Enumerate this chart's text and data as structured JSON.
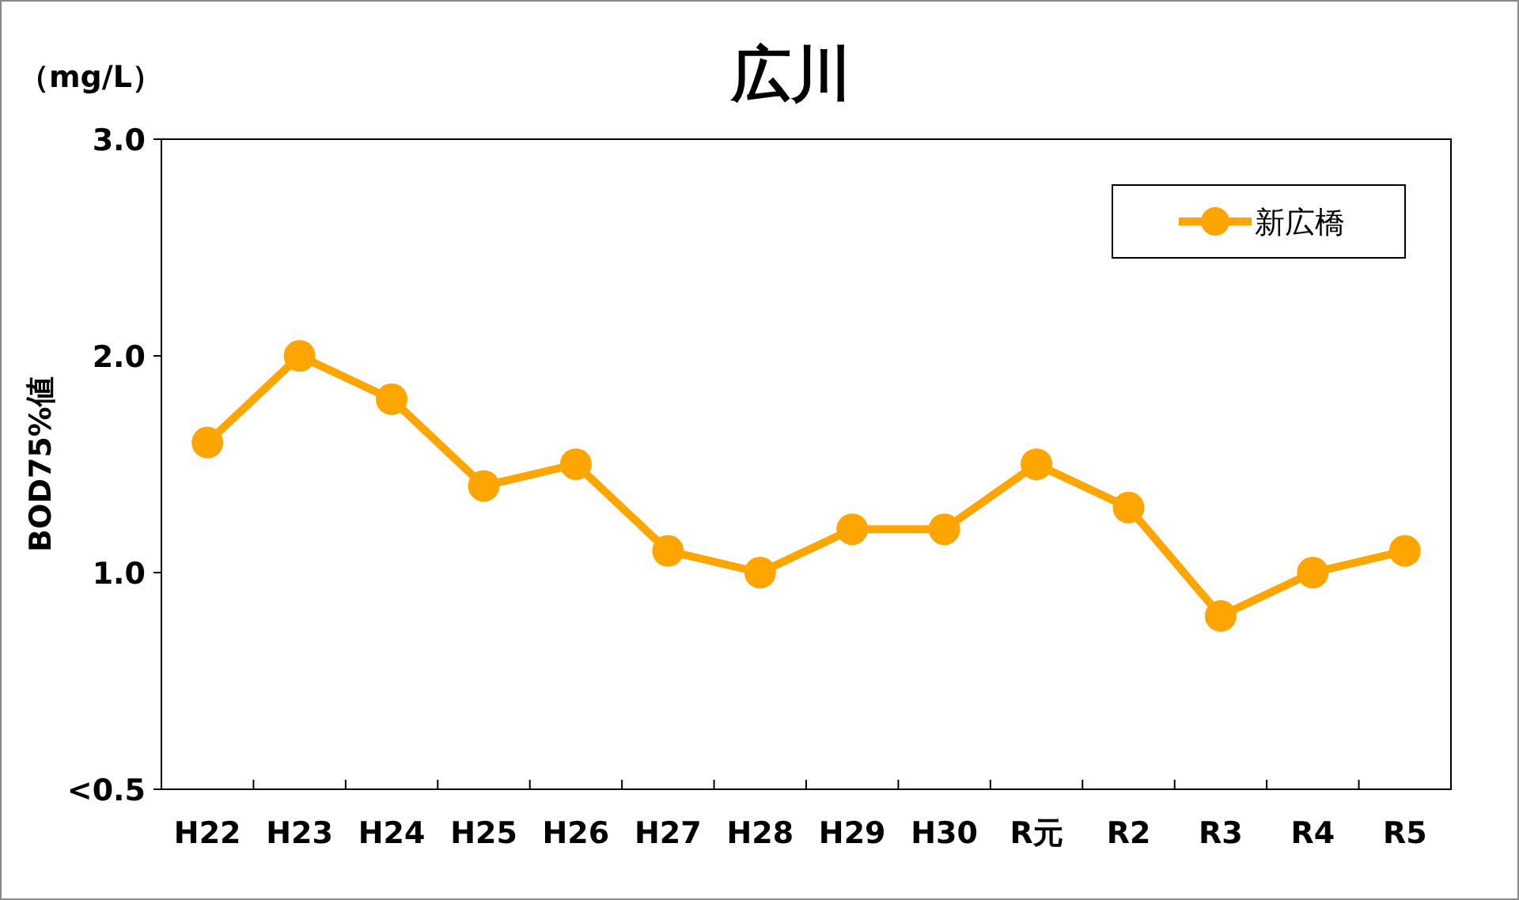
{
  "chart_data": {
    "type": "line",
    "title": "広川",
    "ylabel": "BOD75%値",
    "annotations": [
      "（mg/L）"
    ],
    "categories": [
      "H22",
      "H23",
      "H24",
      "H25",
      "H26",
      "H27",
      "H28",
      "H29",
      "H30",
      "R元",
      "R2",
      "R3",
      "R4",
      "R5"
    ],
    "series": [
      {
        "name": "新広橋",
        "color": "#ffa500",
        "values": [
          1.6,
          2.0,
          1.8,
          1.4,
          1.5,
          1.1,
          1.0,
          1.2,
          1.2,
          1.5,
          1.3,
          0.8,
          1.0,
          1.1
        ]
      }
    ],
    "ylim": [
      0,
      3
    ],
    "yticks": [
      {
        "value": 0,
        "label": "<0.5"
      },
      {
        "value": 1,
        "label": "1.0"
      },
      {
        "value": 2,
        "label": "2.0"
      },
      {
        "value": 3,
        "label": "3.0"
      }
    ],
    "legend": "top right",
    "marker": "circle",
    "line_style": "solid"
  }
}
